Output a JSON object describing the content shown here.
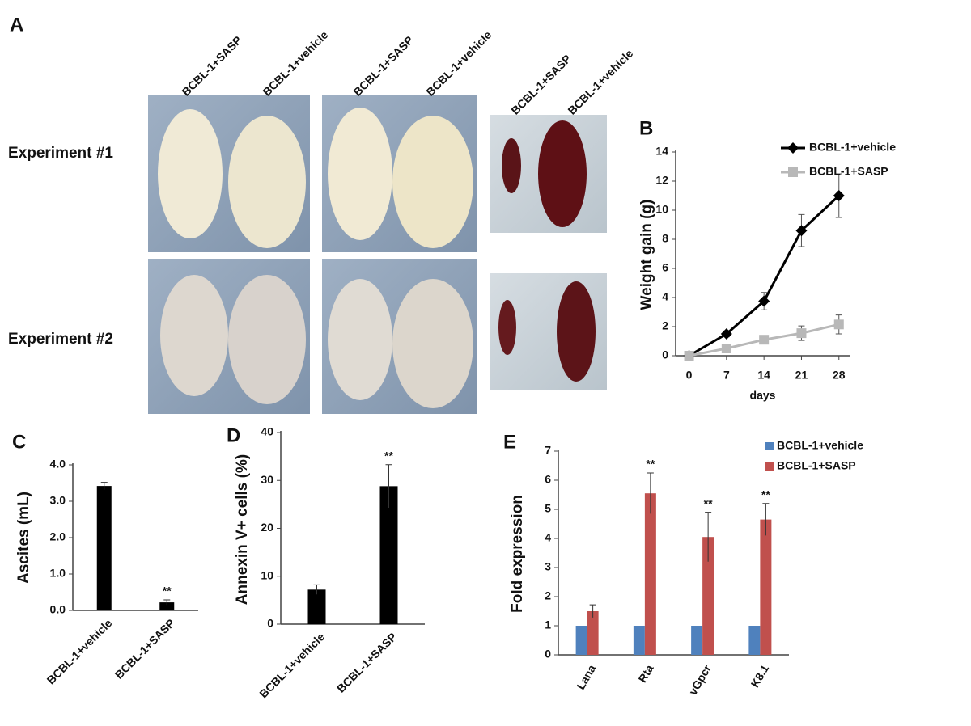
{
  "photo_panel": {
    "label": "A",
    "column_labels": [
      "BCBL-1+SASP",
      "BCBL-1+vehicle",
      "BCBL-1+SASP",
      "BCBL-1+vehicle",
      "BCBL-1+SASP",
      "BCBL-1+vehicle"
    ],
    "row_labels": [
      "Experiment #1",
      "Experiment #2"
    ]
  },
  "chart_data": [
    {
      "type": "line",
      "panel_label": "B",
      "ylabel": "Weight gain (g)",
      "xlabel": "days",
      "x": [
        0,
        7,
        14,
        21,
        28
      ],
      "xlim": [
        -2.5,
        30
      ],
      "xticks": [
        0,
        7,
        14,
        21,
        28
      ],
      "ylim": [
        0,
        14
      ],
      "yticks": [
        0,
        2,
        4,
        6,
        8,
        10,
        12,
        14
      ],
      "legend": "upper right",
      "series": [
        {
          "name": "BCBL-1+vehicle",
          "color": "#000000",
          "marker": "diamond",
          "values": [
            0,
            1.5,
            3.75,
            8.6,
            11
          ],
          "errors": [
            0,
            0.2,
            0.6,
            1.1,
            1.5
          ]
        },
        {
          "name": "BCBL-1+SASP",
          "color": "#b8b8b8",
          "marker": "square",
          "values": [
            0,
            0.5,
            1.1,
            1.55,
            2.15
          ],
          "errors": [
            0,
            0.15,
            0.15,
            0.5,
            0.65
          ]
        }
      ]
    },
    {
      "type": "bar",
      "panel_label": "C",
      "ylabel": "Ascites (mL)",
      "categories": [
        "BCBL-1+vehicle",
        "BCBL-1+SASP"
      ],
      "values": [
        3.42,
        0.22
      ],
      "errors": [
        0.1,
        0.07
      ],
      "significance": [
        null,
        "**"
      ],
      "color": "#000000",
      "ylim": [
        0,
        4
      ],
      "yticks": [
        {
          "value": 0,
          "label": "0.0"
        },
        {
          "value": 1,
          "label": "1.0"
        },
        {
          "value": 2,
          "label": "2.0"
        },
        {
          "value": 3,
          "label": "3.0"
        },
        {
          "value": 4,
          "label": "4.0"
        }
      ]
    },
    {
      "type": "bar",
      "panel_label": "D",
      "ylabel": "Annexin V+ cells (%)",
      "categories": [
        "BCBL-1+vehicle",
        "BCBL-1+SASP"
      ],
      "values": [
        7.2,
        28.8
      ],
      "errors": [
        1,
        4.5
      ],
      "significance": [
        null,
        "**"
      ],
      "color": "#000000",
      "ylim": [
        0,
        40
      ],
      "yticks": [
        0,
        10,
        20,
        30,
        40
      ]
    },
    {
      "type": "bar",
      "panel_label": "E",
      "ylabel": "Fold expression",
      "categories": [
        "Lana",
        "Rta",
        "vGpcr",
        "K8.1"
      ],
      "ylim": [
        0,
        7
      ],
      "yticks": [
        0,
        1,
        2,
        3,
        4,
        5,
        6,
        7
      ],
      "legend": "upper right",
      "series": [
        {
          "name": "BCBL-1+vehicle",
          "color": "#4f81bd",
          "values": [
            1,
            1,
            1,
            1
          ]
        },
        {
          "name": "BCBL-1+SASP",
          "color": "#c0504d",
          "values": [
            1.5,
            5.55,
            4.05,
            4.65
          ],
          "errors": [
            0.22,
            0.7,
            0.85,
            0.55
          ],
          "significance": [
            null,
            "**",
            "**",
            "**"
          ]
        }
      ]
    }
  ]
}
